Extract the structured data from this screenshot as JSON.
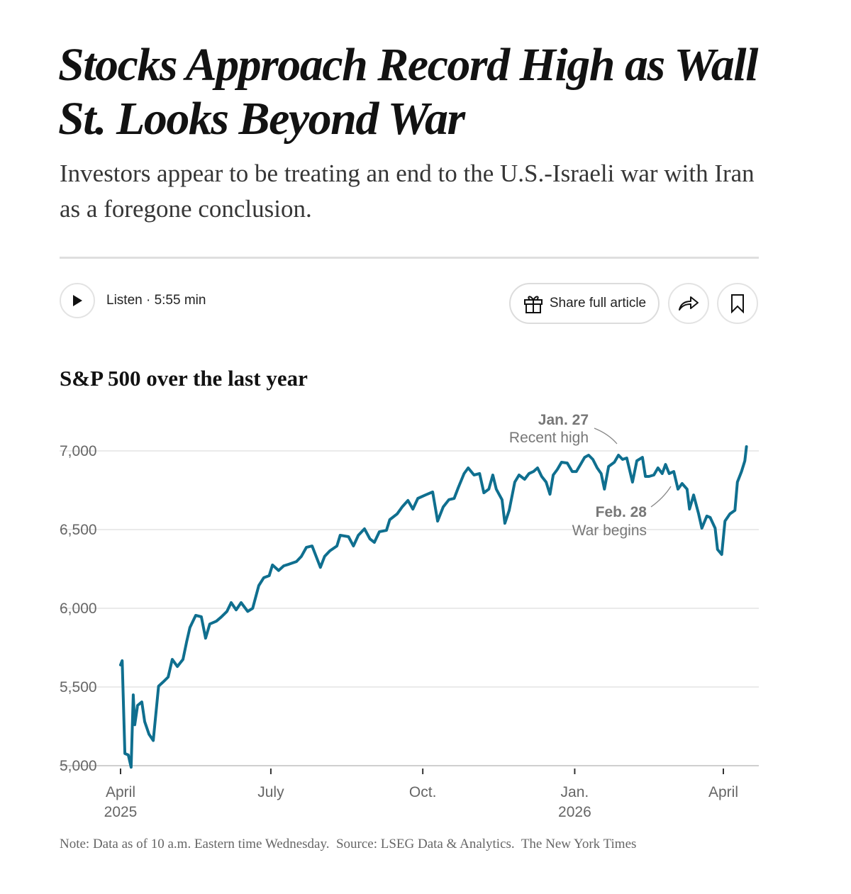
{
  "article": {
    "headline": "Stocks Approach Record High as Wall St. Looks Beyond War",
    "summary": "Investors appear to be treating an end to the U.S.-Israeli war with Iran as a foregone conclusion."
  },
  "toolbar": {
    "listen_label": "Listen · 5:55 min",
    "share_label": "Share full article"
  },
  "colors": {
    "line": "#0f6f8f",
    "grid": "#e4e4e4",
    "text": "#121212",
    "muted": "#777777"
  },
  "chart_data": {
    "type": "line",
    "title": "S&P 500 over the last year",
    "xlabel": "",
    "ylabel": "",
    "ylim": [
      5000,
      7000
    ],
    "xunit": "days since April 1, 2025",
    "xlim": [
      0,
      379
    ],
    "yticks": [
      {
        "value": 7000,
        "label": "7,000"
      },
      {
        "value": 6500,
        "label": "6,500"
      },
      {
        "value": 6000,
        "label": "6,000"
      },
      {
        "value": 5500,
        "label": "5,500"
      },
      {
        "value": 5000,
        "label": "5,000"
      }
    ],
    "xticks": [
      {
        "value": 0,
        "label": "April",
        "sub": "2025"
      },
      {
        "value": 91,
        "label": "July",
        "sub": ""
      },
      {
        "value": 183,
        "label": "Oct.",
        "sub": ""
      },
      {
        "value": 275,
        "label": "Jan.",
        "sub": "2026"
      },
      {
        "value": 365,
        "label": "April",
        "sub": ""
      }
    ],
    "grid": true,
    "annotations": [
      {
        "date": "Jan. 27",
        "text": "Recent high",
        "day": 301,
        "value": 6973
      },
      {
        "date": "Feb. 28",
        "text": "War begins",
        "day": 333,
        "value": 6860
      }
    ],
    "series": [
      {
        "name": "S&P 500",
        "points": [
          [
            0,
            5640
          ],
          [
            1,
            5667
          ],
          [
            2.6,
            5077
          ],
          [
            4.7,
            5068
          ],
          [
            6.4,
            4990
          ],
          [
            7.7,
            5450
          ],
          [
            8.6,
            5260
          ],
          [
            10.3,
            5383
          ],
          [
            12.9,
            5405
          ],
          [
            14.6,
            5280
          ],
          [
            17.2,
            5200
          ],
          [
            19.8,
            5160
          ],
          [
            23,
            5505
          ],
          [
            25.8,
            5532
          ],
          [
            28.8,
            5563
          ],
          [
            31.3,
            5675
          ],
          [
            34.4,
            5630
          ],
          [
            37.8,
            5675
          ],
          [
            40,
            5788
          ],
          [
            42,
            5878
          ],
          [
            45.5,
            5955
          ],
          [
            48.9,
            5946
          ],
          [
            51.5,
            5810
          ],
          [
            54,
            5900
          ],
          [
            58,
            5918
          ],
          [
            61,
            5945
          ],
          [
            64.4,
            5980
          ],
          [
            67,
            6036
          ],
          [
            70,
            5990
          ],
          [
            73,
            6036
          ],
          [
            77,
            5980
          ],
          [
            80,
            6000
          ],
          [
            83.7,
            6144
          ],
          [
            86.7,
            6194
          ],
          [
            90,
            6207
          ],
          [
            92,
            6275
          ],
          [
            95.7,
            6240
          ],
          [
            98.8,
            6270
          ],
          [
            102,
            6280
          ],
          [
            106.5,
            6297
          ],
          [
            109.5,
            6330
          ],
          [
            112.5,
            6387
          ],
          [
            116,
            6396
          ],
          [
            121,
            6260
          ],
          [
            123.6,
            6330
          ],
          [
            126.7,
            6365
          ],
          [
            131,
            6396
          ],
          [
            133,
            6464
          ],
          [
            138,
            6455
          ],
          [
            141,
            6396
          ],
          [
            144,
            6464
          ],
          [
            147.7,
            6505
          ],
          [
            151,
            6441
          ],
          [
            153.7,
            6419
          ],
          [
            156.7,
            6486
          ],
          [
            161,
            6495
          ],
          [
            163,
            6563
          ],
          [
            167.5,
            6600
          ],
          [
            170.5,
            6644
          ],
          [
            174,
            6685
          ],
          [
            177,
            6630
          ],
          [
            180,
            6698
          ],
          [
            184.6,
            6720
          ],
          [
            189,
            6739
          ],
          [
            192,
            6554
          ],
          [
            195.4,
            6644
          ],
          [
            198.8,
            6690
          ],
          [
            202,
            6698
          ],
          [
            204.5,
            6766
          ],
          [
            208,
            6856
          ],
          [
            210.5,
            6892
          ],
          [
            214,
            6847
          ],
          [
            217.4,
            6856
          ],
          [
            220,
            6734
          ],
          [
            223,
            6757
          ],
          [
            225.4,
            6847
          ],
          [
            227.5,
            6757
          ],
          [
            231,
            6690
          ],
          [
            232.7,
            6540
          ],
          [
            235.3,
            6622
          ],
          [
            238.7,
            6802
          ],
          [
            241.3,
            6847
          ],
          [
            244.7,
            6820
          ],
          [
            247.3,
            6856
          ],
          [
            250,
            6869
          ],
          [
            252.5,
            6892
          ],
          [
            255,
            6838
          ],
          [
            257.7,
            6802
          ],
          [
            260,
            6725
          ],
          [
            262,
            6847
          ],
          [
            264.5,
            6883
          ],
          [
            267,
            6928
          ],
          [
            270.5,
            6923
          ],
          [
            273.5,
            6869
          ],
          [
            276,
            6869
          ],
          [
            278.5,
            6914
          ],
          [
            281,
            6959
          ],
          [
            283.4,
            6973
          ],
          [
            286,
            6946
          ],
          [
            288.6,
            6892
          ],
          [
            291,
            6856
          ],
          [
            293,
            6757
          ],
          [
            295.5,
            6901
          ],
          [
            299,
            6928
          ],
          [
            301.5,
            6973
          ],
          [
            304,
            6946
          ],
          [
            306.5,
            6955
          ],
          [
            310,
            6802
          ],
          [
            312.6,
            6937
          ],
          [
            316,
            6959
          ],
          [
            317.8,
            6838
          ],
          [
            320,
            6838
          ],
          [
            322.9,
            6847
          ],
          [
            325.4,
            6892
          ],
          [
            328,
            6856
          ],
          [
            330,
            6914
          ],
          [
            332.2,
            6856
          ],
          [
            335,
            6869
          ],
          [
            337.5,
            6757
          ],
          [
            340,
            6793
          ],
          [
            343,
            6757
          ],
          [
            344.5,
            6630
          ],
          [
            347,
            6720
          ],
          [
            350,
            6600
          ],
          [
            352,
            6509
          ],
          [
            355,
            6586
          ],
          [
            357,
            6577
          ],
          [
            360,
            6509
          ],
          [
            361.5,
            6374
          ],
          [
            364,
            6342
          ],
          [
            366,
            6554
          ],
          [
            369,
            6600
          ],
          [
            372,
            6622
          ],
          [
            373.5,
            6802
          ],
          [
            376,
            6869
          ],
          [
            378,
            6937
          ],
          [
            379,
            7027
          ]
        ]
      }
    ]
  },
  "footer": {
    "note": "Note: Data as of 10 a.m. Eastern time Wednesday.  Source: LSEG Data & Analytics.  The New York Times"
  }
}
